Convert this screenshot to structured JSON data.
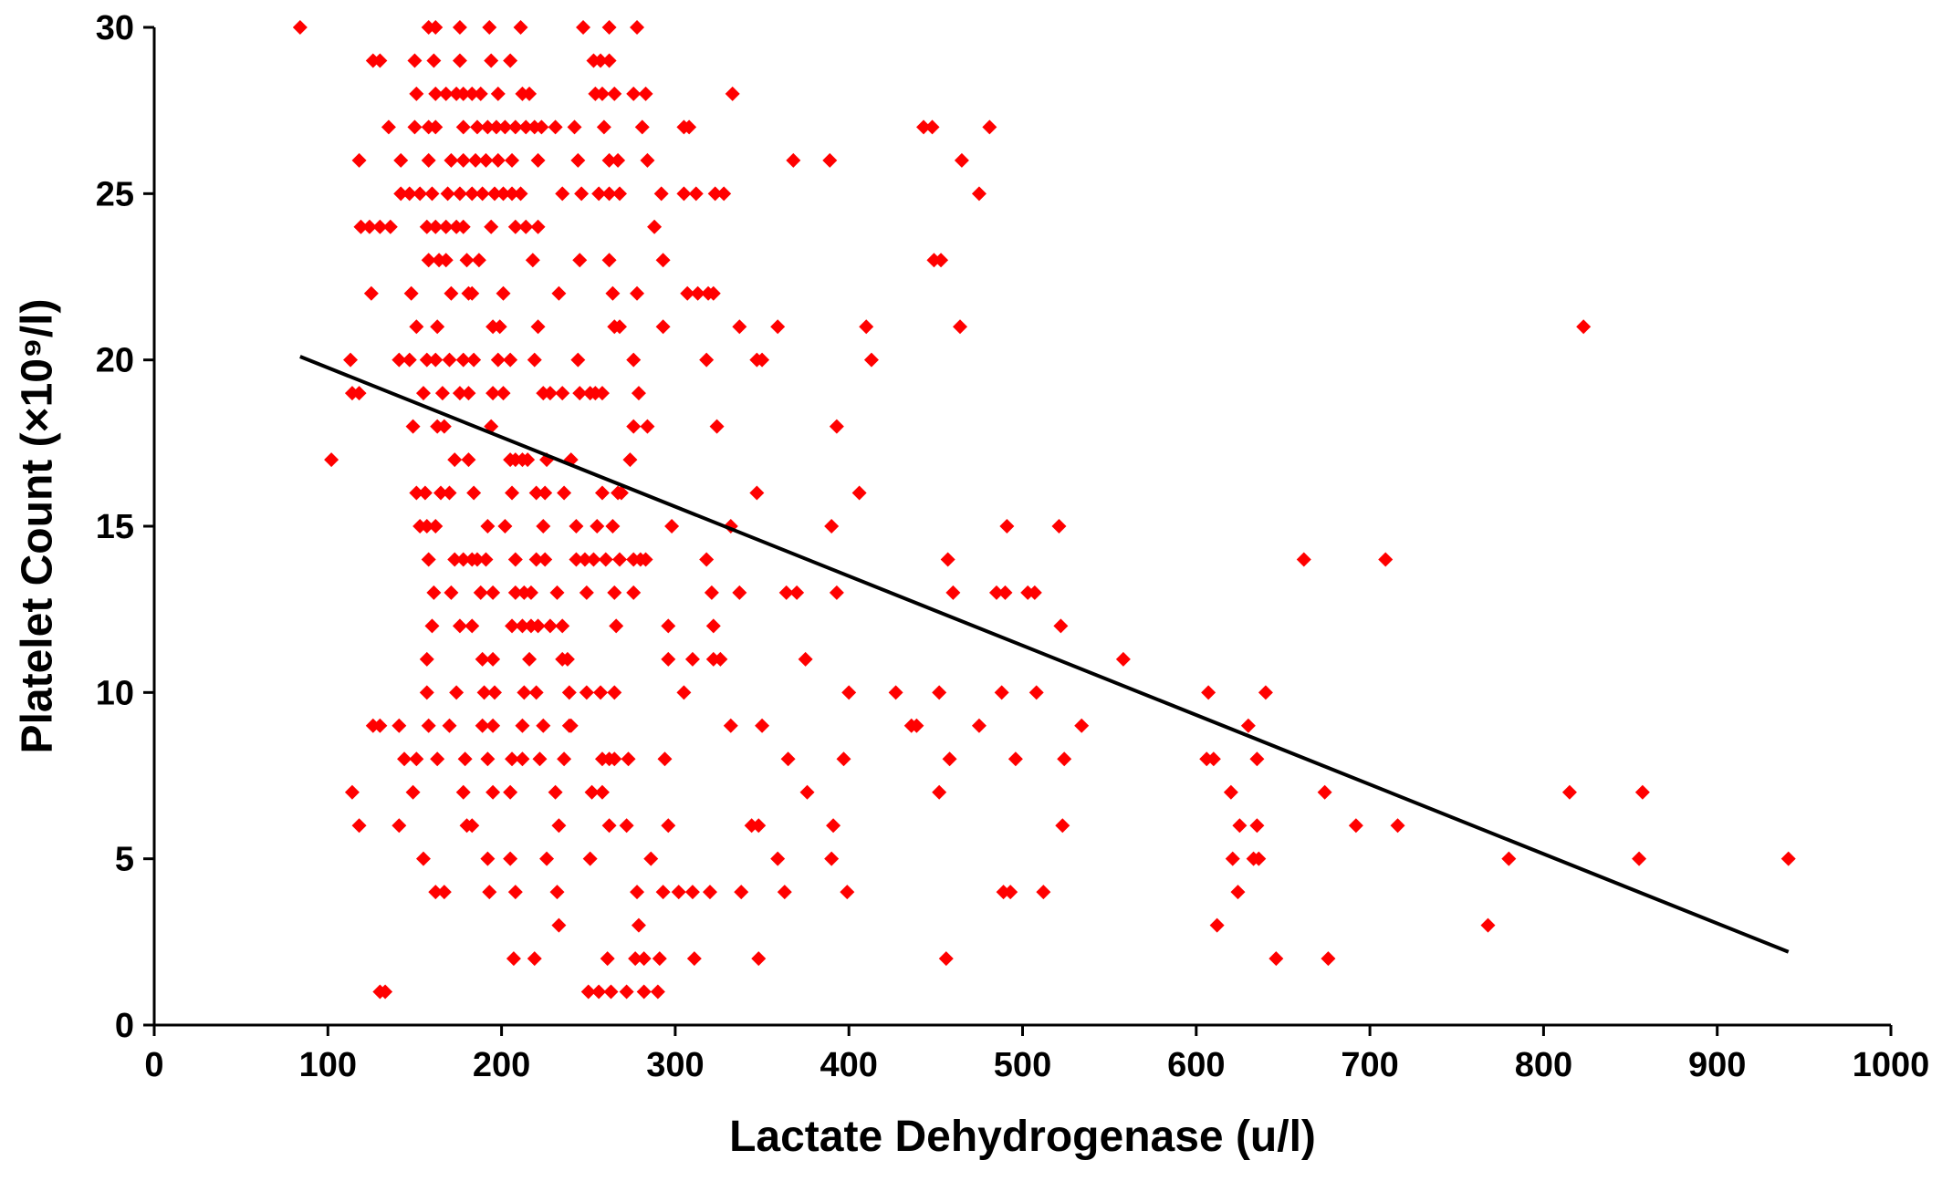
{
  "chart_data": {
    "type": "scatter",
    "xlabel": "Lactate Dehydrogenase (u/l)",
    "ylabel": "Platelet Count (×10⁹/l)",
    "xlim": [
      0,
      1000
    ],
    "ylim": [
      0,
      30
    ],
    "xticks": [
      0,
      100,
      200,
      300,
      400,
      500,
      600,
      700,
      800,
      900,
      1000
    ],
    "yticks": [
      0,
      5,
      10,
      15,
      20,
      25,
      30
    ],
    "grid": false,
    "marker_color": "#ff0000",
    "trendline": {
      "x": [
        84,
        941
      ],
      "y": [
        20.1,
        2.2
      ],
      "color": "#000000"
    },
    "points": [
      [
        84,
        30
      ],
      [
        158,
        30
      ],
      [
        162,
        30
      ],
      [
        176,
        30
      ],
      [
        193,
        30
      ],
      [
        211,
        30
      ],
      [
        247,
        30
      ],
      [
        262,
        30
      ],
      [
        278,
        30
      ],
      [
        126,
        29
      ],
      [
        130,
        29
      ],
      [
        150,
        29
      ],
      [
        161,
        29
      ],
      [
        176,
        29
      ],
      [
        194,
        29
      ],
      [
        205,
        29
      ],
      [
        253,
        29
      ],
      [
        257,
        29
      ],
      [
        262,
        29
      ],
      [
        151,
        28
      ],
      [
        162,
        28
      ],
      [
        168,
        28
      ],
      [
        174,
        28
      ],
      [
        178,
        28
      ],
      [
        183,
        28
      ],
      [
        188,
        28
      ],
      [
        198,
        28
      ],
      [
        212,
        28
      ],
      [
        216,
        28
      ],
      [
        254,
        28
      ],
      [
        258,
        28
      ],
      [
        265,
        28
      ],
      [
        276,
        28
      ],
      [
        283,
        28
      ],
      [
        333,
        28
      ],
      [
        135,
        27
      ],
      [
        150,
        27
      ],
      [
        158,
        27
      ],
      [
        162,
        27
      ],
      [
        178,
        27
      ],
      [
        186,
        27
      ],
      [
        192,
        27
      ],
      [
        197,
        27
      ],
      [
        202,
        27
      ],
      [
        208,
        27
      ],
      [
        214,
        27
      ],
      [
        219,
        27
      ],
      [
        223,
        27
      ],
      [
        231,
        27
      ],
      [
        242,
        27
      ],
      [
        259,
        27
      ],
      [
        281,
        27
      ],
      [
        305,
        27
      ],
      [
        308,
        27
      ],
      [
        443,
        27
      ],
      [
        448,
        27
      ],
      [
        481,
        27
      ],
      [
        118,
        26
      ],
      [
        142,
        26
      ],
      [
        158,
        26
      ],
      [
        171,
        26
      ],
      [
        178,
        26
      ],
      [
        185,
        26
      ],
      [
        191,
        26
      ],
      [
        198,
        26
      ],
      [
        206,
        26
      ],
      [
        221,
        26
      ],
      [
        244,
        26
      ],
      [
        262,
        26
      ],
      [
        267,
        26
      ],
      [
        284,
        26
      ],
      [
        368,
        26
      ],
      [
        389,
        26
      ],
      [
        465,
        26
      ],
      [
        142,
        25
      ],
      [
        147,
        25
      ],
      [
        153,
        25
      ],
      [
        160,
        25
      ],
      [
        169,
        25
      ],
      [
        176,
        25
      ],
      [
        183,
        25
      ],
      [
        189,
        25
      ],
      [
        196,
        25
      ],
      [
        201,
        25
      ],
      [
        206,
        25
      ],
      [
        211,
        25
      ],
      [
        235,
        25
      ],
      [
        246,
        25
      ],
      [
        256,
        25
      ],
      [
        262,
        25
      ],
      [
        268,
        25
      ],
      [
        292,
        25
      ],
      [
        305,
        25
      ],
      [
        312,
        25
      ],
      [
        323,
        25
      ],
      [
        328,
        25
      ],
      [
        475,
        25
      ],
      [
        119,
        24
      ],
      [
        124,
        24
      ],
      [
        130,
        24
      ],
      [
        136,
        24
      ],
      [
        157,
        24
      ],
      [
        162,
        24
      ],
      [
        168,
        24
      ],
      [
        174,
        24
      ],
      [
        178,
        24
      ],
      [
        194,
        24
      ],
      [
        208,
        24
      ],
      [
        214,
        24
      ],
      [
        221,
        24
      ],
      [
        288,
        24
      ],
      [
        158,
        23
      ],
      [
        164,
        23
      ],
      [
        168,
        23
      ],
      [
        180,
        23
      ],
      [
        187,
        23
      ],
      [
        218,
        23
      ],
      [
        245,
        23
      ],
      [
        262,
        23
      ],
      [
        293,
        23
      ],
      [
        449,
        23
      ],
      [
        453,
        23
      ],
      [
        125,
        22
      ],
      [
        148,
        22
      ],
      [
        171,
        22
      ],
      [
        181,
        22
      ],
      [
        183,
        22
      ],
      [
        201,
        22
      ],
      [
        233,
        22
      ],
      [
        264,
        22
      ],
      [
        278,
        22
      ],
      [
        307,
        22
      ],
      [
        313,
        22
      ],
      [
        319,
        22
      ],
      [
        322,
        22
      ],
      [
        151,
        21
      ],
      [
        163,
        21
      ],
      [
        195,
        21
      ],
      [
        199,
        21
      ],
      [
        221,
        21
      ],
      [
        265,
        21
      ],
      [
        268,
        21
      ],
      [
        293,
        21
      ],
      [
        337,
        21
      ],
      [
        359,
        21
      ],
      [
        410,
        21
      ],
      [
        464,
        21
      ],
      [
        823,
        21
      ],
      [
        113,
        20
      ],
      [
        141,
        20
      ],
      [
        147,
        20
      ],
      [
        157,
        20
      ],
      [
        162,
        20
      ],
      [
        170,
        20
      ],
      [
        178,
        20
      ],
      [
        184,
        20
      ],
      [
        198,
        20
      ],
      [
        205,
        20
      ],
      [
        219,
        20
      ],
      [
        244,
        20
      ],
      [
        276,
        20
      ],
      [
        318,
        20
      ],
      [
        347,
        20
      ],
      [
        350,
        20
      ],
      [
        413,
        20
      ],
      [
        114,
        19
      ],
      [
        118,
        19
      ],
      [
        155,
        19
      ],
      [
        166,
        19
      ],
      [
        176,
        19
      ],
      [
        181,
        19
      ],
      [
        195,
        19
      ],
      [
        201,
        19
      ],
      [
        224,
        19
      ],
      [
        228,
        19
      ],
      [
        235,
        19
      ],
      [
        245,
        19
      ],
      [
        251,
        19
      ],
      [
        254,
        19
      ],
      [
        258,
        19
      ],
      [
        279,
        19
      ],
      [
        149,
        18
      ],
      [
        163,
        18
      ],
      [
        167,
        18
      ],
      [
        194,
        18
      ],
      [
        276,
        18
      ],
      [
        284,
        18
      ],
      [
        324,
        18
      ],
      [
        393,
        18
      ],
      [
        102,
        17
      ],
      [
        173,
        17
      ],
      [
        181,
        17
      ],
      [
        205,
        17
      ],
      [
        208,
        17
      ],
      [
        212,
        17
      ],
      [
        215,
        17
      ],
      [
        226,
        17
      ],
      [
        240,
        17
      ],
      [
        274,
        17
      ],
      [
        151,
        16
      ],
      [
        156,
        16
      ],
      [
        165,
        16
      ],
      [
        170,
        16
      ],
      [
        184,
        16
      ],
      [
        206,
        16
      ],
      [
        220,
        16
      ],
      [
        225,
        16
      ],
      [
        236,
        16
      ],
      [
        258,
        16
      ],
      [
        267,
        16
      ],
      [
        269,
        16
      ],
      [
        347,
        16
      ],
      [
        406,
        16
      ],
      [
        153,
        15
      ],
      [
        157,
        15
      ],
      [
        162,
        15
      ],
      [
        192,
        15
      ],
      [
        202,
        15
      ],
      [
        224,
        15
      ],
      [
        243,
        15
      ],
      [
        255,
        15
      ],
      [
        264,
        15
      ],
      [
        298,
        15
      ],
      [
        332,
        15
      ],
      [
        390,
        15
      ],
      [
        491,
        15
      ],
      [
        521,
        15
      ],
      [
        158,
        14
      ],
      [
        173,
        14
      ],
      [
        178,
        14
      ],
      [
        183,
        14
      ],
      [
        186,
        14
      ],
      [
        191,
        14
      ],
      [
        208,
        14
      ],
      [
        220,
        14
      ],
      [
        225,
        14
      ],
      [
        243,
        14
      ],
      [
        248,
        14
      ],
      [
        253,
        14
      ],
      [
        260,
        14
      ],
      [
        268,
        14
      ],
      [
        276,
        14
      ],
      [
        280,
        14
      ],
      [
        283,
        14
      ],
      [
        318,
        14
      ],
      [
        457,
        14
      ],
      [
        662,
        14
      ],
      [
        709,
        14
      ],
      [
        161,
        13
      ],
      [
        171,
        13
      ],
      [
        188,
        13
      ],
      [
        195,
        13
      ],
      [
        208,
        13
      ],
      [
        213,
        13
      ],
      [
        217,
        13
      ],
      [
        232,
        13
      ],
      [
        249,
        13
      ],
      [
        265,
        13
      ],
      [
        276,
        13
      ],
      [
        321,
        13
      ],
      [
        337,
        13
      ],
      [
        364,
        13
      ],
      [
        370,
        13
      ],
      [
        393,
        13
      ],
      [
        460,
        13
      ],
      [
        485,
        13
      ],
      [
        490,
        13
      ],
      [
        503,
        13
      ],
      [
        507,
        13
      ],
      [
        160,
        12
      ],
      [
        176,
        12
      ],
      [
        183,
        12
      ],
      [
        206,
        12
      ],
      [
        212,
        12
      ],
      [
        217,
        12
      ],
      [
        221,
        12
      ],
      [
        228,
        12
      ],
      [
        235,
        12
      ],
      [
        266,
        12
      ],
      [
        296,
        12
      ],
      [
        322,
        12
      ],
      [
        522,
        12
      ],
      [
        157,
        11
      ],
      [
        189,
        11
      ],
      [
        195,
        11
      ],
      [
        216,
        11
      ],
      [
        235,
        11
      ],
      [
        238,
        11
      ],
      [
        296,
        11
      ],
      [
        310,
        11
      ],
      [
        322,
        11
      ],
      [
        326,
        11
      ],
      [
        375,
        11
      ],
      [
        558,
        11
      ],
      [
        157,
        10
      ],
      [
        174,
        10
      ],
      [
        190,
        10
      ],
      [
        196,
        10
      ],
      [
        213,
        10
      ],
      [
        220,
        10
      ],
      [
        239,
        10
      ],
      [
        249,
        10
      ],
      [
        257,
        10
      ],
      [
        265,
        10
      ],
      [
        305,
        10
      ],
      [
        400,
        10
      ],
      [
        427,
        10
      ],
      [
        452,
        10
      ],
      [
        488,
        10
      ],
      [
        508,
        10
      ],
      [
        607,
        10
      ],
      [
        640,
        10
      ],
      [
        126,
        9
      ],
      [
        130,
        9
      ],
      [
        141,
        9
      ],
      [
        158,
        9
      ],
      [
        170,
        9
      ],
      [
        189,
        9
      ],
      [
        195,
        9
      ],
      [
        212,
        9
      ],
      [
        224,
        9
      ],
      [
        239,
        9
      ],
      [
        240,
        9
      ],
      [
        332,
        9
      ],
      [
        350,
        9
      ],
      [
        436,
        9
      ],
      [
        439,
        9
      ],
      [
        475,
        9
      ],
      [
        534,
        9
      ],
      [
        630,
        9
      ],
      [
        144,
        8
      ],
      [
        151,
        8
      ],
      [
        163,
        8
      ],
      [
        179,
        8
      ],
      [
        192,
        8
      ],
      [
        206,
        8
      ],
      [
        212,
        8
      ],
      [
        222,
        8
      ],
      [
        236,
        8
      ],
      [
        258,
        8
      ],
      [
        262,
        8
      ],
      [
        265,
        8
      ],
      [
        273,
        8
      ],
      [
        294,
        8
      ],
      [
        365,
        8
      ],
      [
        397,
        8
      ],
      [
        458,
        8
      ],
      [
        496,
        8
      ],
      [
        524,
        8
      ],
      [
        606,
        8
      ],
      [
        610,
        8
      ],
      [
        635,
        8
      ],
      [
        114,
        7
      ],
      [
        149,
        7
      ],
      [
        178,
        7
      ],
      [
        195,
        7
      ],
      [
        205,
        7
      ],
      [
        231,
        7
      ],
      [
        252,
        7
      ],
      [
        258,
        7
      ],
      [
        376,
        7
      ],
      [
        452,
        7
      ],
      [
        620,
        7
      ],
      [
        674,
        7
      ],
      [
        815,
        7
      ],
      [
        857,
        7
      ],
      [
        118,
        6
      ],
      [
        141,
        6
      ],
      [
        180,
        6
      ],
      [
        183,
        6
      ],
      [
        233,
        6
      ],
      [
        262,
        6
      ],
      [
        272,
        6
      ],
      [
        296,
        6
      ],
      [
        344,
        6
      ],
      [
        348,
        6
      ],
      [
        391,
        6
      ],
      [
        523,
        6
      ],
      [
        625,
        6
      ],
      [
        635,
        6
      ],
      [
        692,
        6
      ],
      [
        716,
        6
      ],
      [
        155,
        5
      ],
      [
        192,
        5
      ],
      [
        205,
        5
      ],
      [
        226,
        5
      ],
      [
        251,
        5
      ],
      [
        286,
        5
      ],
      [
        359,
        5
      ],
      [
        390,
        5
      ],
      [
        621,
        5
      ],
      [
        633,
        5
      ],
      [
        636,
        5
      ],
      [
        780,
        5
      ],
      [
        855,
        5
      ],
      [
        941,
        5
      ],
      [
        162,
        4
      ],
      [
        167,
        4
      ],
      [
        193,
        4
      ],
      [
        208,
        4
      ],
      [
        232,
        4
      ],
      [
        278,
        4
      ],
      [
        293,
        4
      ],
      [
        302,
        4
      ],
      [
        310,
        4
      ],
      [
        320,
        4
      ],
      [
        338,
        4
      ],
      [
        363,
        4
      ],
      [
        399,
        4
      ],
      [
        489,
        4
      ],
      [
        493,
        4
      ],
      [
        512,
        4
      ],
      [
        624,
        4
      ],
      [
        233,
        3
      ],
      [
        279,
        3
      ],
      [
        612,
        3
      ],
      [
        768,
        3
      ],
      [
        207,
        2
      ],
      [
        219,
        2
      ],
      [
        261,
        2
      ],
      [
        277,
        2
      ],
      [
        282,
        2
      ],
      [
        291,
        2
      ],
      [
        311,
        2
      ],
      [
        348,
        2
      ],
      [
        456,
        2
      ],
      [
        646,
        2
      ],
      [
        676,
        2
      ],
      [
        130,
        1
      ],
      [
        133,
        1
      ],
      [
        250,
        1
      ],
      [
        256,
        1
      ],
      [
        263,
        1
      ],
      [
        272,
        1
      ],
      [
        282,
        1
      ],
      [
        290,
        1
      ]
    ]
  }
}
